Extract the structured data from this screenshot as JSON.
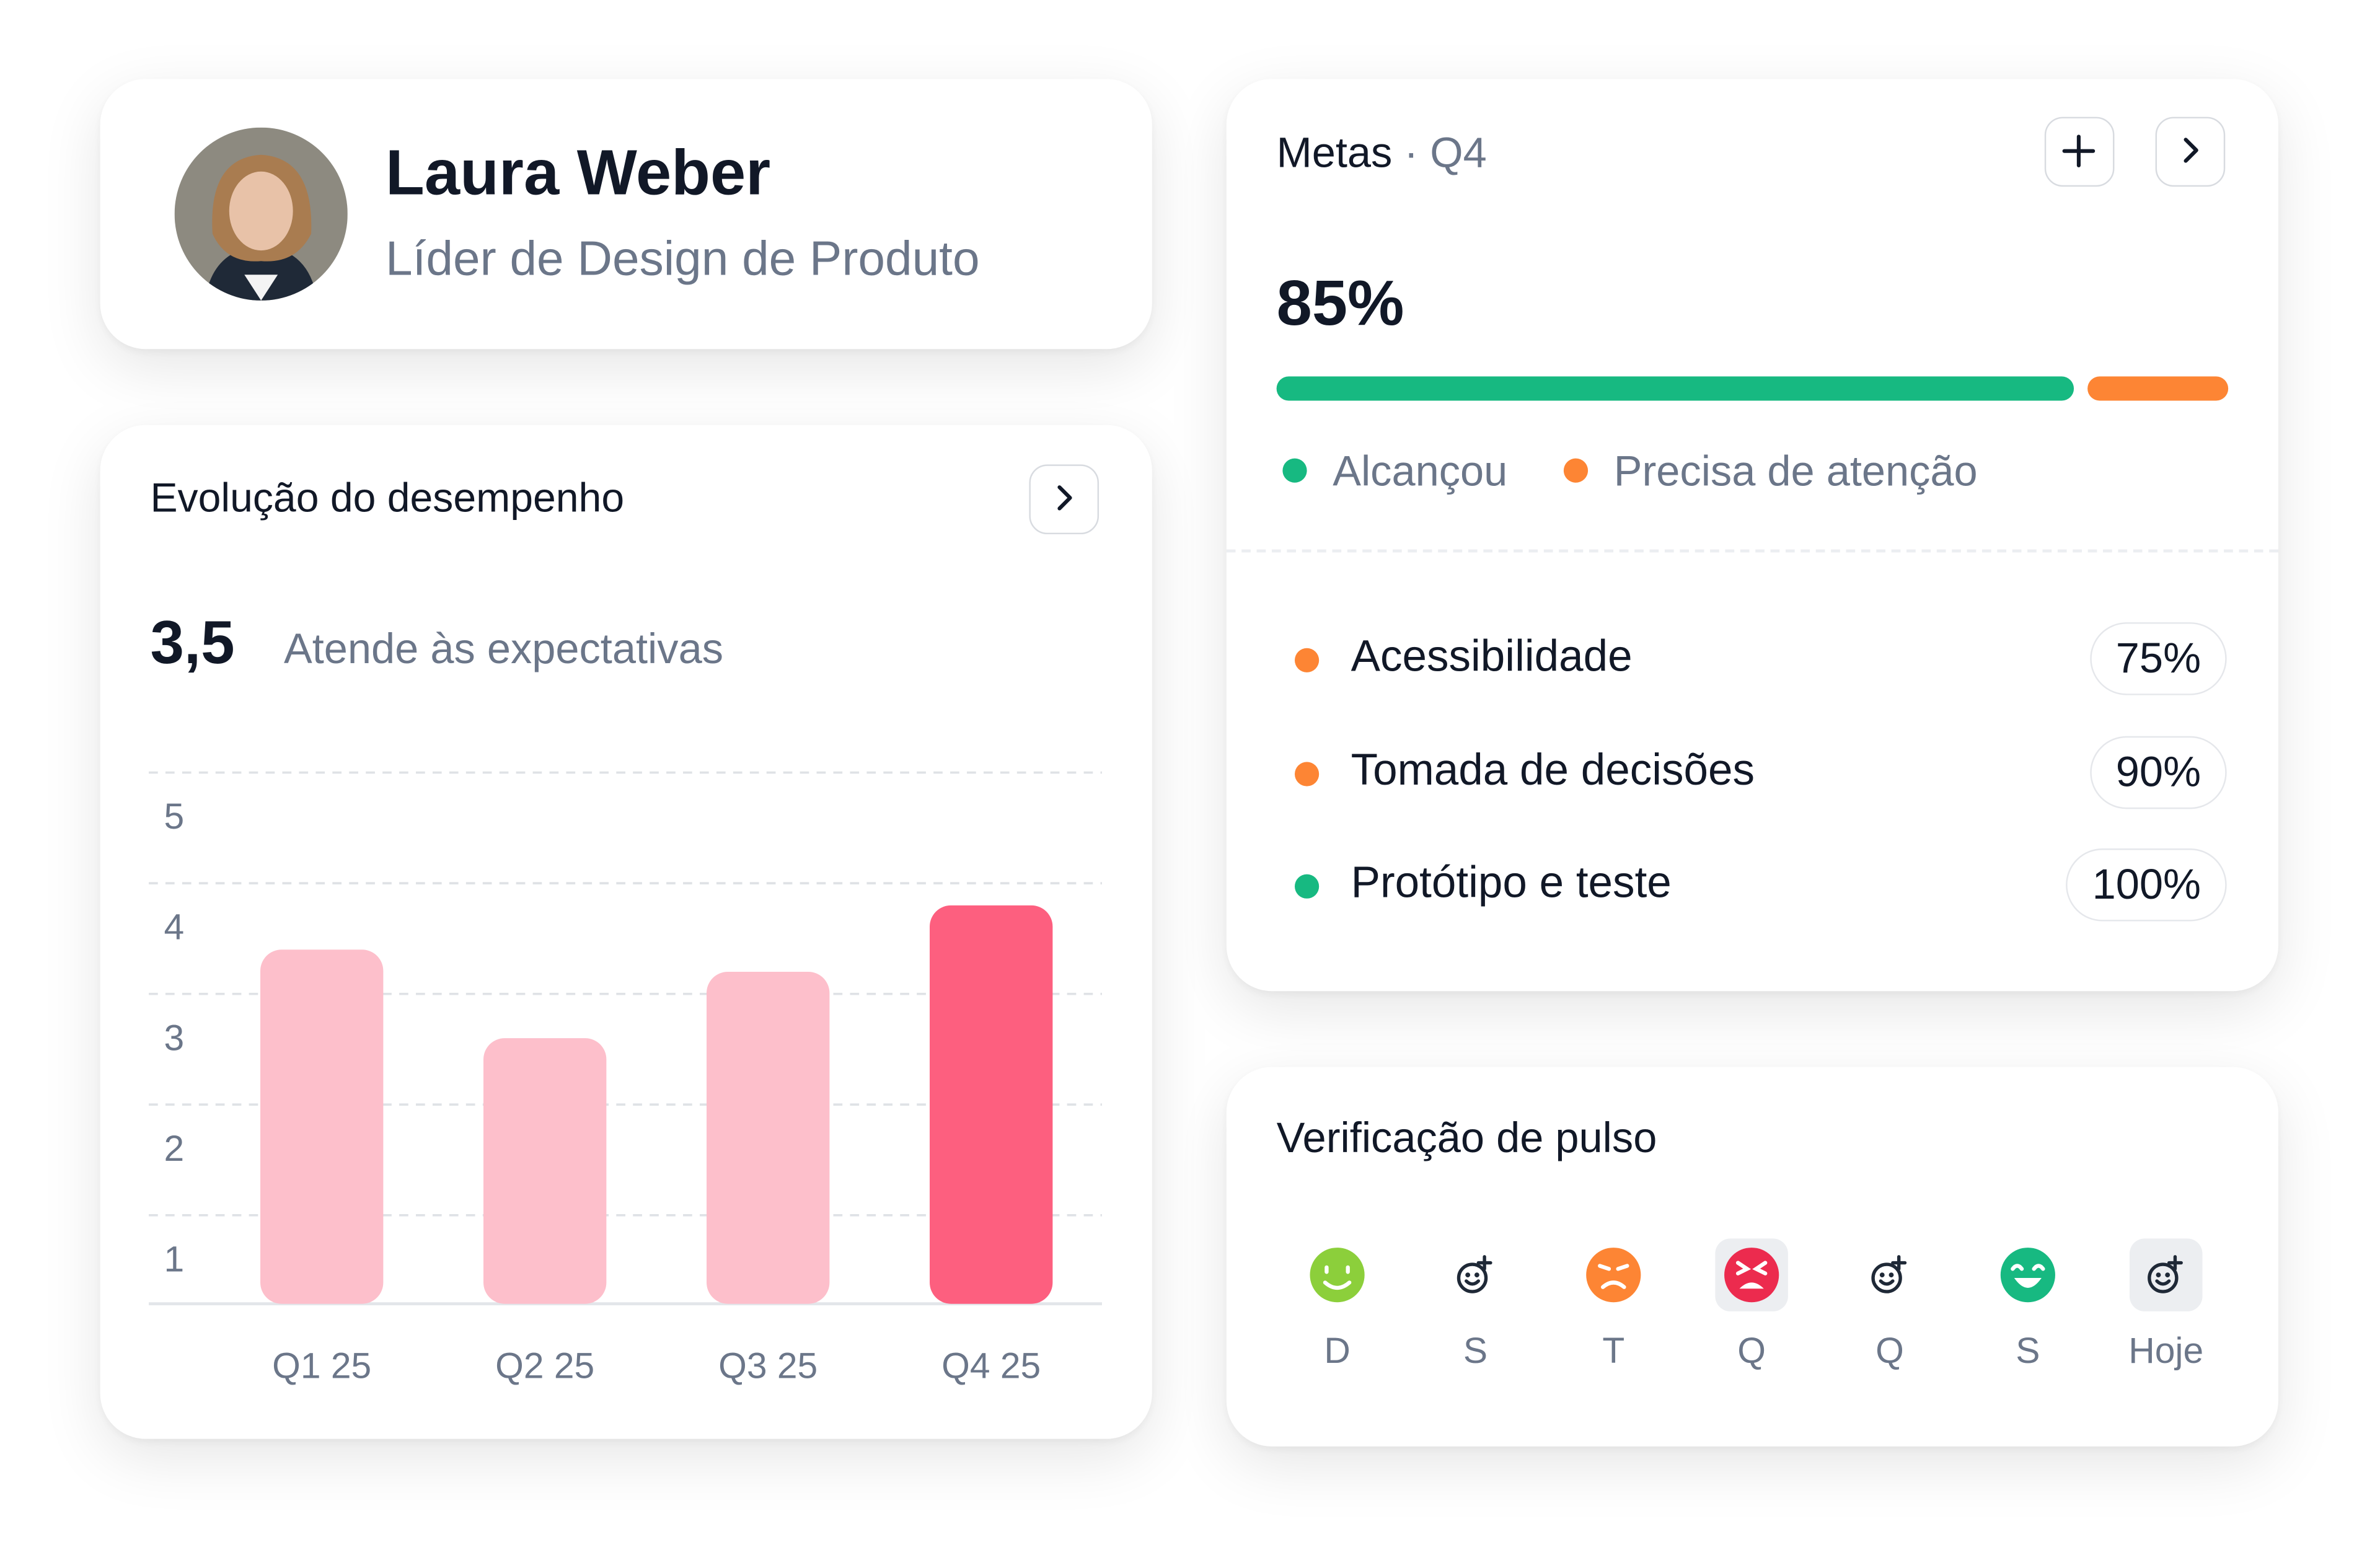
{
  "profile": {
    "name": "Laura Weber",
    "role": "Líder de Design de Produto"
  },
  "performance": {
    "title": "Evolução do desempenho",
    "score": "3,5",
    "score_label": "Atende às expectativas"
  },
  "chart_data": {
    "type": "bar",
    "categories": [
      "Q1 25",
      "Q2 25",
      "Q3 25",
      "Q4 25"
    ],
    "values": [
      3.4,
      2.6,
      3.2,
      3.8
    ],
    "colors": [
      "#fdbfcb",
      "#fdbfcb",
      "#fdbfcb",
      "#fd5f7f"
    ],
    "ylim": [
      0.2,
      5
    ],
    "yticks": [
      1,
      2,
      3,
      4,
      5
    ],
    "grid": true
  },
  "goals": {
    "title": "Metas",
    "period": "Q4",
    "percent": "85%",
    "progress": [
      {
        "name": "Alcançou",
        "color": "#17b981",
        "value": 85
      },
      {
        "name": "Precisa de atenção",
        "color": "#fd8534",
        "value": 15
      }
    ],
    "items": [
      {
        "name": "Acessibilidade",
        "value": "75%",
        "color": "#fd8534"
      },
      {
        "name": "Tomada de decisões",
        "value": "90%",
        "color": "#fd8534"
      },
      {
        "name": "Protótipo e teste",
        "value": "100%",
        "color": "#17b981"
      }
    ]
  },
  "pulse": {
    "title": "Verificação de pulso",
    "days": [
      {
        "label": "D",
        "mood": "happy",
        "highlighted": false
      },
      {
        "label": "S",
        "mood": "none",
        "highlighted": false
      },
      {
        "label": "T",
        "mood": "sad",
        "highlighted": false
      },
      {
        "label": "Q",
        "mood": "angry",
        "highlighted": true
      },
      {
        "label": "Q",
        "mood": "none",
        "highlighted": false
      },
      {
        "label": "S",
        "mood": "joyful",
        "highlighted": false
      },
      {
        "label": "Hoje",
        "mood": "none",
        "highlighted": true
      }
    ]
  }
}
